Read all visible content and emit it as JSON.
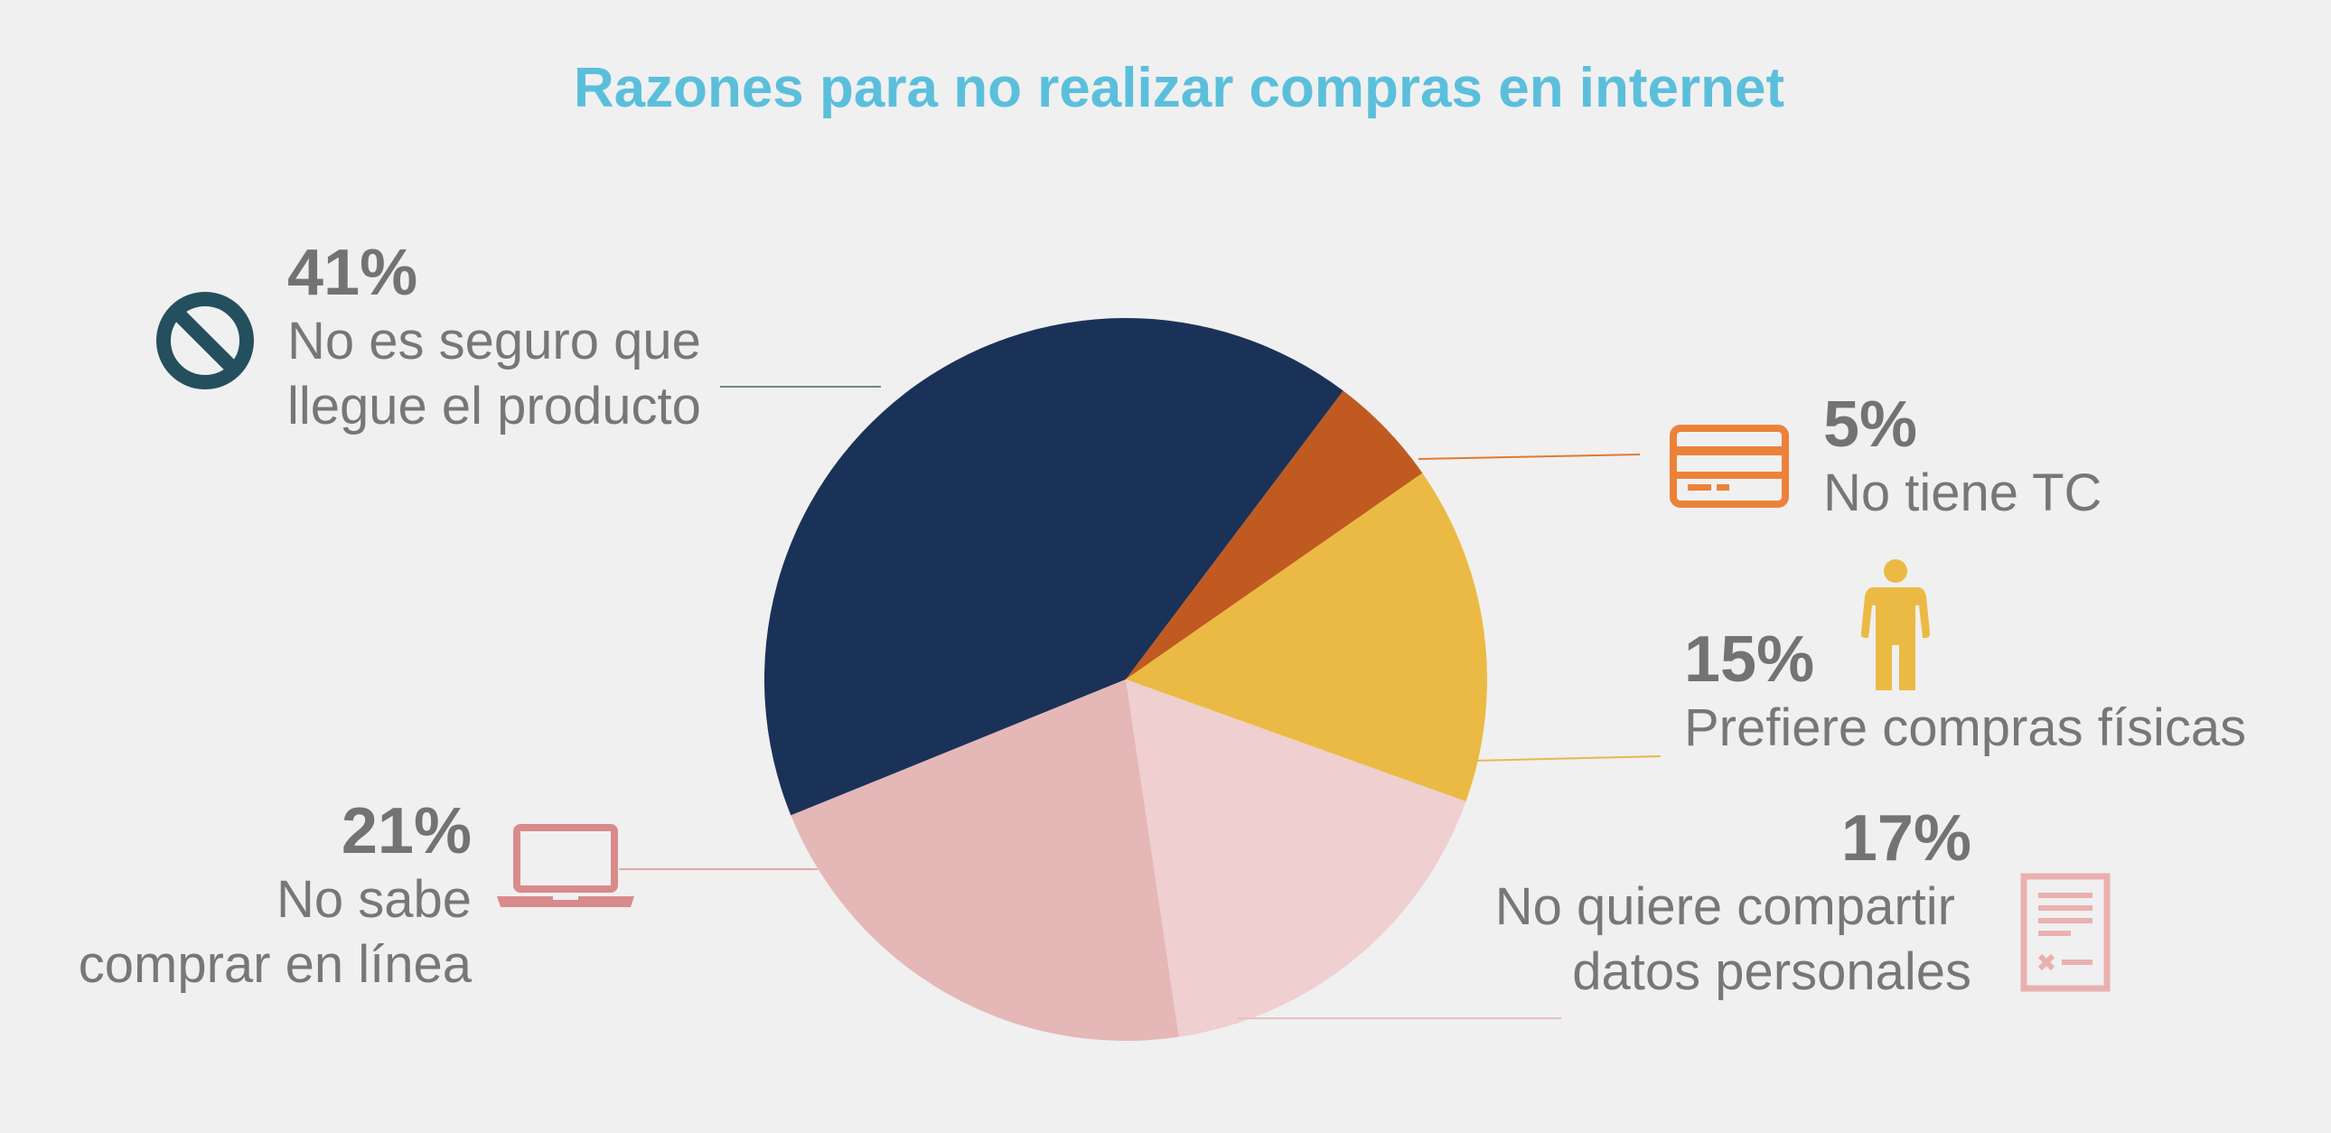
{
  "chart_data": {
    "type": "pie",
    "title": "Razones para no realizar compras en internet",
    "slices": [
      {
        "label": "No es seguro que llegue el producto",
        "line1": "No es seguro que",
        "line2": "llegue el producto",
        "percent_label": "41%",
        "value": 41,
        "color": "#1b3258",
        "icon": "no-entry-icon",
        "icon_color": "#244f5e"
      },
      {
        "label": "No tiene TC",
        "line1": "No tiene TC",
        "line2": "",
        "percent_label": "5%",
        "value": 5,
        "color": "#c15a20",
        "icon": "credit-card-icon",
        "icon_color": "#ec823a"
      },
      {
        "label": "Prefiere compras físicas",
        "line1": "Prefiere compras físicas",
        "line2": "",
        "percent_label": "15%",
        "value": 15,
        "color": "#ebba44",
        "icon": "person-icon",
        "icon_color": "#ebba44"
      },
      {
        "label": "No quiere compartir datos personales",
        "line1": "No quiere compartir",
        "line2": "datos personales",
        "percent_label": "17%",
        "value": 17,
        "color": "#efcfcf",
        "icon": "document-icon",
        "icon_color": "#eab0b0"
      },
      {
        "label": "No sabe comprar en línea",
        "line1": "No sabe",
        "line2": "comprar en línea",
        "percent_label": "21%",
        "value": 21,
        "color": "#e5b7b7",
        "icon": "laptop-icon",
        "icon_color": "#d98b8b"
      }
    ]
  }
}
